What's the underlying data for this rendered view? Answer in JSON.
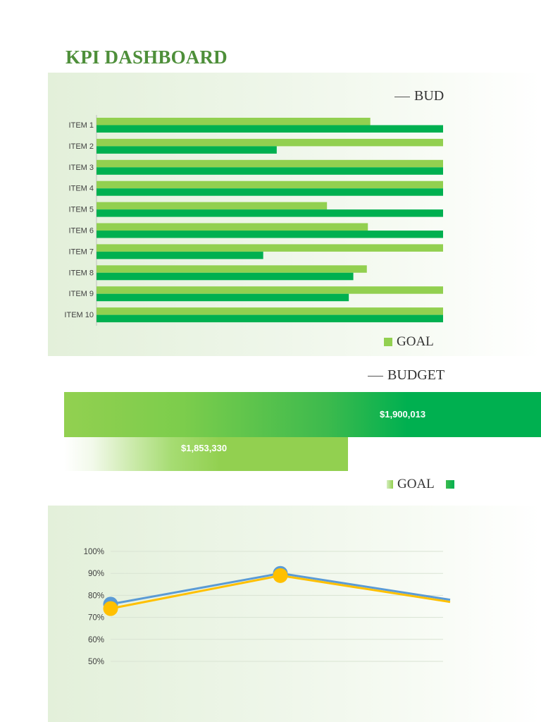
{
  "title": "KPI DASHBOARD",
  "colors": {
    "title": "#4e8f3a",
    "goal": "#92d050",
    "budget": "#00b050",
    "line_blue": "#5b9bd5",
    "line_yellow": "#ffc000"
  },
  "panel1": {
    "legend_top": "BUDGET",
    "legend_bottom": "GOAL"
  },
  "panel2": {
    "legend_top": "BUDGET",
    "legend_bottom": "GOAL"
  },
  "chart_data": [
    {
      "type": "bar",
      "orientation": "horizontal",
      "categories": [
        "ITEM 1",
        "ITEM 2",
        "ITEM 3",
        "ITEM 4",
        "ITEM 5",
        "ITEM 6",
        "ITEM 7",
        "ITEM 8",
        "ITEM 9",
        "ITEM 10"
      ],
      "series": [
        {
          "name": "GOAL",
          "color": "#92d050",
          "values": [
            0.79,
            1.0,
            1.0,
            1.0,
            0.665,
            0.783,
            1.0,
            0.78,
            1.0,
            1.0
          ]
        },
        {
          "name": "BUDGET",
          "color": "#00b050",
          "values": [
            1.0,
            0.52,
            1.0,
            1.0,
            1.0,
            1.0,
            0.481,
            0.741,
            0.728,
            1.0
          ]
        }
      ],
      "xlim": [
        0,
        1
      ],
      "grid": false,
      "legend": "top-right / bottom-right"
    },
    {
      "type": "bar",
      "orientation": "horizontal",
      "categories": [
        ""
      ],
      "series": [
        {
          "name": "BUDGET",
          "color": "#00b050",
          "values": [
            1900013
          ],
          "label": "$1,900,013"
        },
        {
          "name": "GOAL",
          "color": "#92d050",
          "values": [
            1853330
          ],
          "label": "$1,853,330"
        }
      ],
      "legend": "bottom-right"
    },
    {
      "type": "line",
      "y_ticks": [
        "100%",
        "90%",
        "80%",
        "70%",
        "60%",
        "50%"
      ],
      "ylim": [
        0.5,
        1.0
      ],
      "x": [
        0,
        1,
        2
      ],
      "series": [
        {
          "color": "#5b9bd5",
          "values": [
            0.76,
            0.9,
            0.78
          ]
        },
        {
          "color": "#ffc000",
          "values": [
            0.74,
            0.89,
            0.77
          ]
        }
      ],
      "grid": true
    }
  ]
}
